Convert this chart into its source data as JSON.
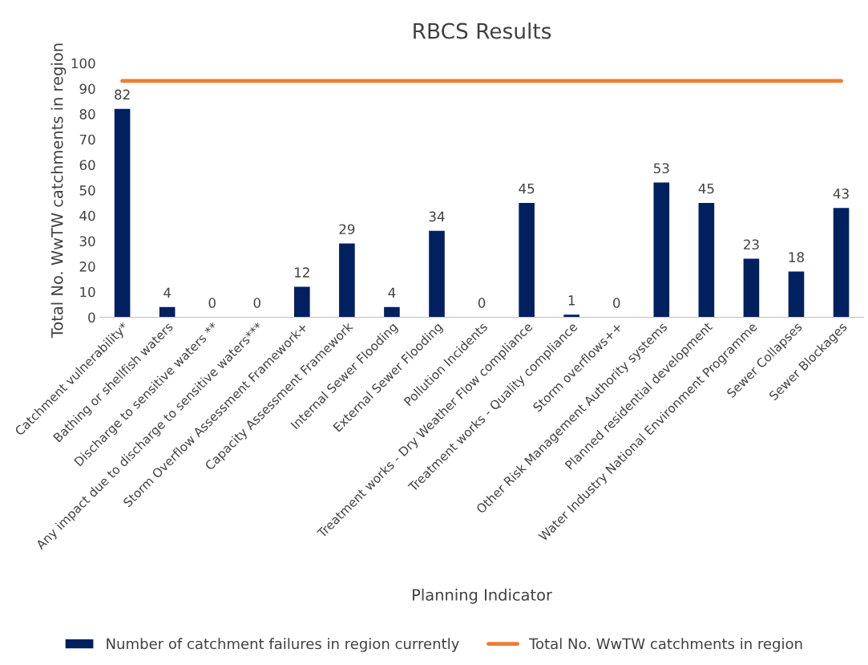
{
  "chart_data": {
    "type": "bar",
    "title": "RBCS Results",
    "xlabel": "Planning Indicator",
    "ylabel": "Total No. WwTW catchments in region",
    "categories": [
      "Catchment vulnerability*",
      "Bathing or shellfish waters",
      "Discharge to sensitive waters **",
      "Any impact due to discharge to sensitive waters***",
      "Storm Overflow Assessment Framework+",
      "Capacity Assessment Framework",
      "Internal Sewer Flooding",
      "External Sewer Flooding",
      "Pollution Incidents",
      "Treatment works - Dry Weather Flow compliance",
      "Treatment works - Quality compliance",
      "Storm overflows++",
      "Other Risk Management Authority systems",
      "Planned residential development",
      "Water Industry National Environment Programme",
      "Sewer Collapses",
      "Sewer Blockages"
    ],
    "series": [
      {
        "name": "Number of catchment failures in region currently",
        "color": "#002060",
        "values": [
          82,
          4,
          0,
          0,
          12,
          29,
          4,
          34,
          0,
          45,
          1,
          0,
          53,
          45,
          23,
          18,
          43
        ],
        "value_labels": [
          "82",
          "4",
          "0",
          "0",
          "12",
          "29",
          "4",
          "34",
          "0",
          "45",
          "1",
          "0",
          "53",
          "45",
          "23",
          "18",
          "43"
        ]
      },
      {
        "name": "Total No. WwTW catchments in region",
        "type": "line",
        "color": "#ed7d31",
        "values": [
          93,
          93,
          93,
          93,
          93,
          93,
          93,
          93,
          93,
          93,
          93,
          93,
          93,
          93,
          93,
          93,
          93
        ]
      }
    ],
    "ylim": [
      0,
      100
    ],
    "yticks": [
      0,
      10,
      20,
      30,
      40,
      50,
      60,
      70,
      80,
      90,
      100
    ],
    "grid": false,
    "legend": "bottom"
  }
}
